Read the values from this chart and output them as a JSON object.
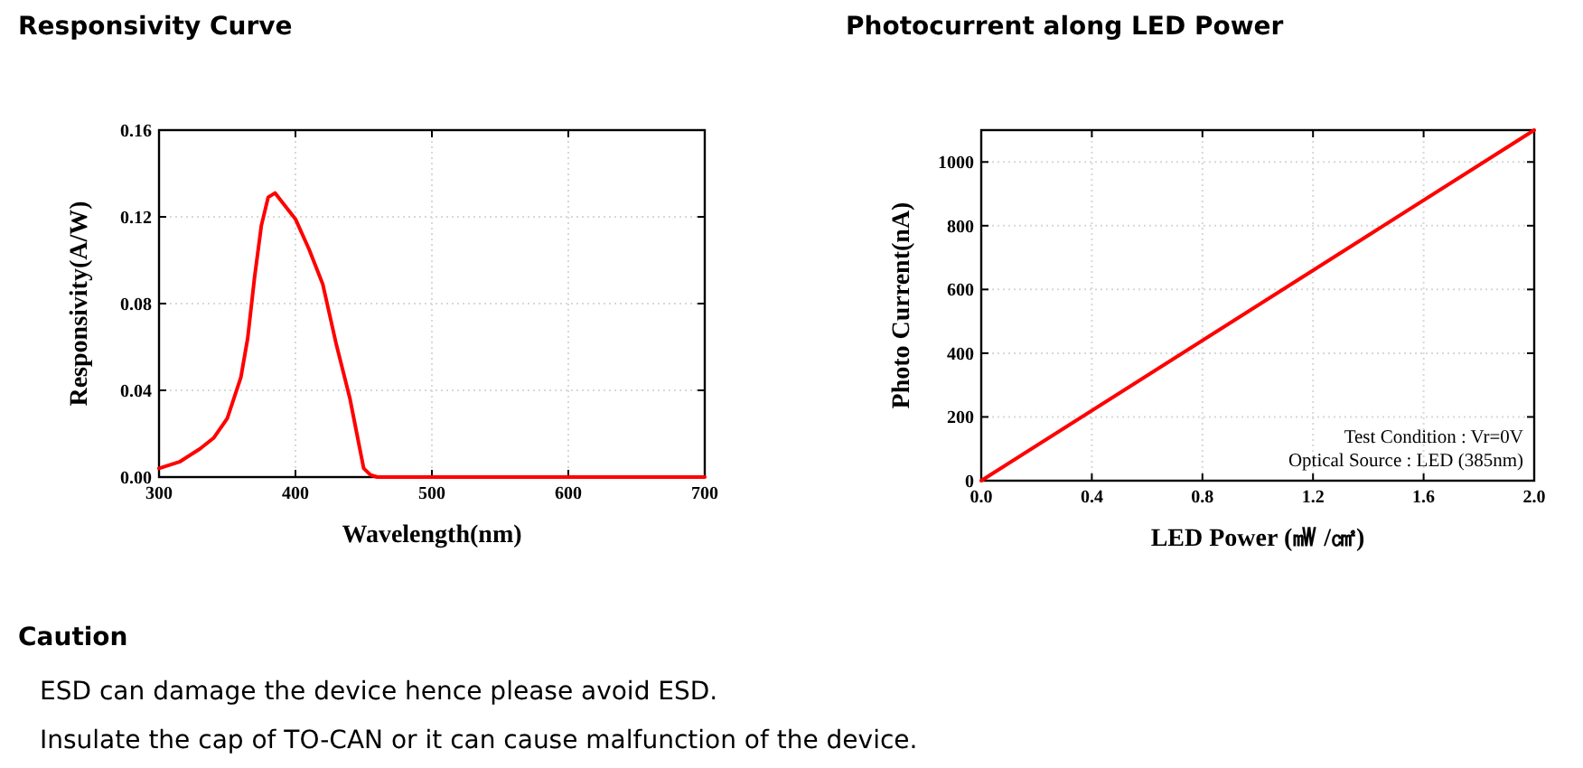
{
  "chart_data": [
    {
      "type": "line",
      "title": "Responsivity Curve",
      "xlabel": "Wavelength(nm)",
      "ylabel": "Responsivity(A/W)",
      "grid": true,
      "xlim": [
        300,
        700
      ],
      "xticks": [
        300,
        400,
        500,
        600,
        700
      ],
      "ylim": [
        0,
        0.16
      ],
      "yticks": [
        {
          "value": 0,
          "label": "0.00"
        },
        {
          "value": 0.04,
          "label": "0.04"
        },
        {
          "value": 0.08,
          "label": "0.08"
        },
        {
          "value": 0.12,
          "label": "0.12"
        },
        {
          "value": 0.16,
          "label": "0.16"
        }
      ],
      "series": [
        {
          "color": "#ff0000",
          "x": [
            300,
            315,
            330,
            340,
            350,
            360,
            365,
            370,
            375,
            380,
            385,
            390,
            400,
            410,
            420,
            430,
            440,
            445,
            450,
            455,
            460,
            700
          ],
          "values": [
            0.004,
            0.007,
            0.013,
            0.018,
            0.027,
            0.046,
            0.064,
            0.092,
            0.116,
            0.129,
            0.131,
            0.127,
            0.119,
            0.105,
            0.089,
            0.061,
            0.036,
            0.02,
            0.004,
            0.001,
            0,
            0
          ]
        }
      ]
    },
    {
      "type": "line",
      "title": "Photocurrent along LED Power",
      "xlabel": "LED Power (㎽ /㎠)",
      "ylabel": "Photo Current(nA)",
      "grid": true,
      "xlim": [
        0,
        2.0
      ],
      "xticks": [
        {
          "value": 0,
          "label": "0.0"
        },
        {
          "value": 0.4,
          "label": "0.4"
        },
        {
          "value": 0.8,
          "label": "0.8"
        },
        {
          "value": 1.2,
          "label": "1.2"
        },
        {
          "value": 1.6,
          "label": "1.6"
        },
        {
          "value": 2.0,
          "label": "2.0"
        }
      ],
      "ylim": [
        0,
        1100
      ],
      "yticks": [
        0,
        200,
        400,
        600,
        800,
        1000
      ],
      "annotations": [
        "Test Condition : Vr=0V",
        "Optical Source : LED (385nm)"
      ],
      "series": [
        {
          "color": "#ff0000",
          "x": [
            0,
            2.0
          ],
          "values": [
            0,
            1100
          ]
        }
      ]
    },
    {
      "type": "other",
      "title": "Caution",
      "annotations": [
        "ESD can damage the device hence please avoid ESD.",
        "Insulate the cap of TO-CAN or it can cause malfunction of the device."
      ]
    }
  ]
}
